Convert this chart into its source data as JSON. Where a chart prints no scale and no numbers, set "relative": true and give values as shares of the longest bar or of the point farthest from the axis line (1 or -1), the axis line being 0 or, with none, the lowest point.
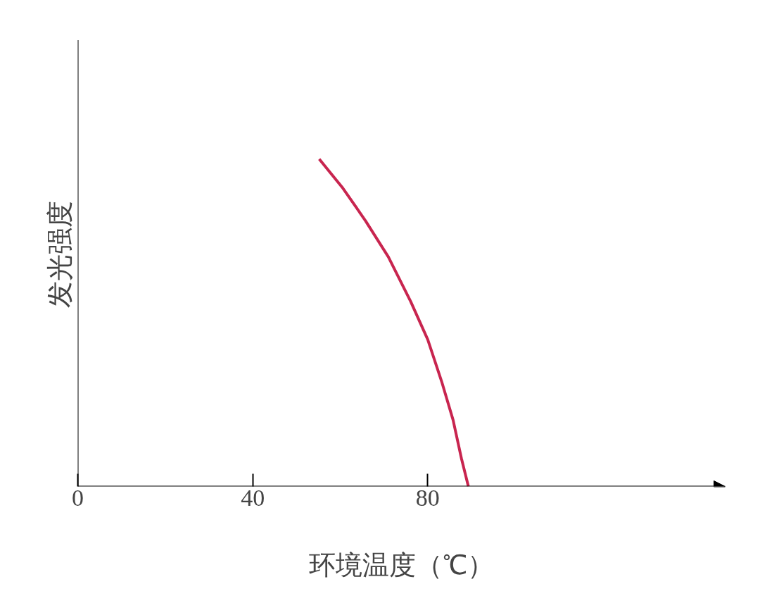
{
  "chart_data": {
    "type": "line",
    "xlabel": "环境温度（℃）",
    "ylabel": "发光强度",
    "relative": true,
    "xlim": [
      0,
      148
    ],
    "xticks": [
      0,
      40,
      80
    ],
    "tick_labels": "x",
    "grid": false,
    "marker": "none",
    "line_style": "solid",
    "series": [
      {
        "color": "#c8254f",
        "x": [
          55.2,
          60.6,
          65.8,
          71.0,
          76.1,
          80.0,
          83.2,
          85.8,
          87.7,
          89.3
        ],
        "values": [
          1.0,
          0.911,
          0.811,
          0.701,
          0.565,
          0.449,
          0.32,
          0.203,
          0.086,
          0
        ]
      }
    ]
  }
}
